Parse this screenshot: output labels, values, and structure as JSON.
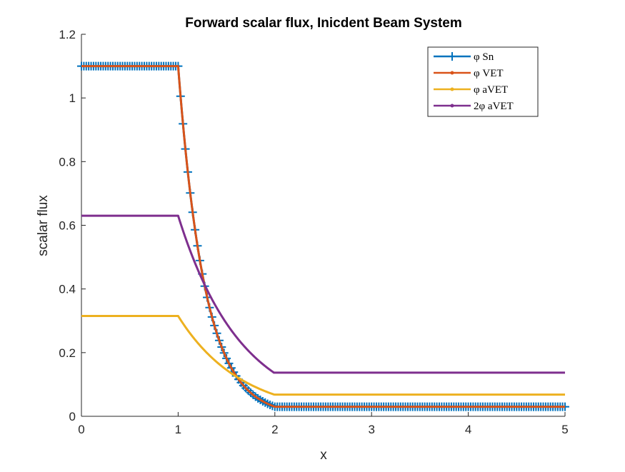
{
  "chart_data": {
    "type": "line",
    "title": "Forward scalar flux, Inicdent Beam System",
    "xlabel": "x",
    "ylabel": "scalar flux",
    "xlim": [
      0,
      5
    ],
    "ylim": [
      0,
      1.2
    ],
    "xticks": [
      0,
      1,
      2,
      3,
      4,
      5
    ],
    "xtick_labels": [
      "0",
      "1",
      "2",
      "3",
      "4",
      "5"
    ],
    "yticks": [
      0,
      0.2,
      0.4,
      0.6,
      0.8,
      1.0,
      1.2
    ],
    "ytick_labels": [
      "0",
      "0.2",
      "0.4",
      "0.6",
      "0.8",
      "1",
      "1.2"
    ],
    "grid": false,
    "legend_position": "top-right",
    "piecewise_model": "x<=1: plateau; 1<x<2: plateau*exp(-k*(x-1)); x>=2: constant",
    "series": [
      {
        "name": "φ Sn",
        "color": "#0072BD",
        "marker": "+",
        "plateau": 1.1,
        "k": 3.6,
        "tail": 0.03
      },
      {
        "name": "φ VET",
        "color": "#D95319",
        "marker": ".",
        "plateau": 1.1,
        "k": 3.6,
        "tail": 0.03
      },
      {
        "name": "φ aVET",
        "color": "#EDB120",
        "marker": ".",
        "plateau": 0.315,
        "k": 1.54,
        "tail": 0.068
      },
      {
        "name": "2φ aVET",
        "color": "#7E2F8E",
        "marker": ".",
        "plateau": 0.63,
        "k": 1.54,
        "tail": 0.137
      }
    ],
    "sample_points": {
      "x": [
        0,
        0.5,
        1.0,
        1.2,
        1.4,
        1.6,
        1.8,
        2.0,
        3.0,
        4.0,
        5.0
      ],
      "φ Sn": [
        1.1,
        1.1,
        1.1,
        0.54,
        0.26,
        0.13,
        0.06,
        0.03,
        0.03,
        0.03,
        0.03
      ],
      "φ VET": [
        1.1,
        1.1,
        1.1,
        0.54,
        0.26,
        0.13,
        0.06,
        0.03,
        0.03,
        0.03,
        0.03
      ],
      "φ aVET": [
        0.315,
        0.315,
        0.315,
        0.232,
        0.17,
        0.125,
        0.092,
        0.068,
        0.068,
        0.068,
        0.068
      ],
      "2φ aVET": [
        0.63,
        0.63,
        0.63,
        0.464,
        0.341,
        0.25,
        0.184,
        0.137,
        0.137,
        0.137,
        0.137
      ]
    }
  }
}
